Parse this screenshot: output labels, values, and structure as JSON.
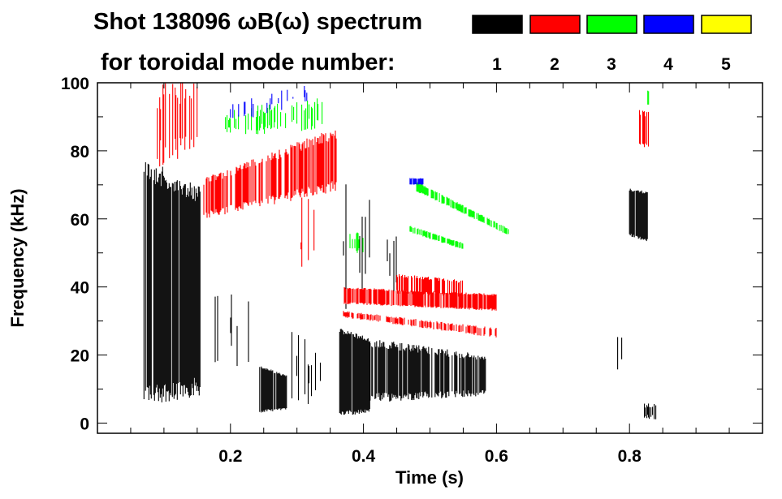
{
  "chart_data": {
    "type": "heatmap",
    "title": "Shot 138096 ωB(ω) spectrum",
    "subtitle": "for toroidal mode number:",
    "xlabel": "Time (s)",
    "ylabel": "Frequency (kHz)",
    "xlim": [
      0,
      1.0
    ],
    "ylim": [
      -3,
      100
    ],
    "xticks": [
      0.2,
      0.4,
      0.6,
      0.8
    ],
    "xtick_labels": [
      "0.2",
      "0.4",
      "0.6",
      "0.8"
    ],
    "yticks": [
      0,
      20,
      40,
      60,
      80,
      100
    ],
    "ytick_labels": [
      "0",
      "20",
      "40",
      "60",
      "80",
      "100"
    ],
    "grid": false,
    "legend_placement": "top-right",
    "legend": [
      {
        "mode": "1",
        "color": "#000000"
      },
      {
        "mode": "2",
        "color": "#ff0000"
      },
      {
        "mode": "3",
        "color": "#00ff00"
      },
      {
        "mode": "4",
        "color": "#0000ff"
      },
      {
        "mode": "5",
        "color": "#ffff00"
      }
    ],
    "features": [
      {
        "mode": 1,
        "t": [
          0.07,
          0.155
        ],
        "f_low": [
          5,
          8
        ],
        "f_high": [
          78,
          70
        ],
        "density": 0.85
      },
      {
        "mode": 1,
        "t": [
          0.16,
          0.23
        ],
        "f_low": [
          10,
          15
        ],
        "f_high": [
          45,
          40
        ],
        "density": 0.15
      },
      {
        "mode": 1,
        "t": [
          0.244,
          0.285
        ],
        "f_low": [
          3,
          4
        ],
        "f_high": [
          17,
          14
        ],
        "density": 0.9
      },
      {
        "mode": 1,
        "t": [
          0.29,
          0.36
        ],
        "f_low": [
          5,
          5
        ],
        "f_high": [
          28,
          30
        ],
        "density": 0.1
      },
      {
        "mode": 1,
        "t": [
          0.363,
          0.41
        ],
        "f_low": [
          2,
          3
        ],
        "f_high": [
          28,
          25
        ],
        "density": 0.9
      },
      {
        "mode": 1,
        "t": [
          0.37,
          0.45
        ],
        "f_low": [
          30,
          35
        ],
        "f_high": [
          75,
          60
        ],
        "density": 0.2
      },
      {
        "mode": 1,
        "t": [
          0.41,
          0.585
        ],
        "f_low": [
          6,
          8
        ],
        "f_high": [
          25,
          20
        ],
        "density": 0.75
      },
      {
        "mode": 1,
        "t": [
          0.8,
          0.83
        ],
        "f_low": [
          55,
          53
        ],
        "f_high": [
          69,
          68
        ],
        "density": 0.9
      },
      {
        "mode": 1,
        "t": [
          0.77,
          0.79
        ],
        "f_low": [
          15,
          15
        ],
        "f_high": [
          28,
          28
        ],
        "density": 0.2
      },
      {
        "mode": 1,
        "t": [
          0.82,
          0.84
        ],
        "f_low": [
          1,
          1
        ],
        "f_high": [
          6,
          6
        ],
        "density": 0.5
      },
      {
        "mode": 2,
        "t": [
          0.09,
          0.15
        ],
        "f_low": [
          75,
          78
        ],
        "f_high": [
          100,
          100
        ],
        "density": 0.45
      },
      {
        "mode": 2,
        "t": [
          0.16,
          0.36
        ],
        "f_low": [
          60,
          68
        ],
        "f_high": [
          72,
          87
        ],
        "density": 0.7
      },
      {
        "mode": 2,
        "t": [
          0.3,
          0.34
        ],
        "f_low": [
          30,
          35
        ],
        "f_high": [
          70,
          70
        ],
        "density": 0.08
      },
      {
        "mode": 2,
        "t": [
          0.37,
          0.6
        ],
        "f_low": [
          35,
          33
        ],
        "f_high": [
          40,
          38
        ],
        "density": 0.8
      },
      {
        "mode": 2,
        "t": [
          0.45,
          0.55
        ],
        "f_low": [
          38,
          37
        ],
        "f_high": [
          44,
          42
        ],
        "density": 0.7
      },
      {
        "mode": 2,
        "t": [
          0.37,
          0.6
        ],
        "f_low": [
          31,
          25
        ],
        "f_high": [
          33,
          28
        ],
        "density": 0.6
      },
      {
        "mode": 2,
        "t": [
          0.815,
          0.83
        ],
        "f_low": [
          80,
          80
        ],
        "f_high": [
          92,
          92
        ],
        "density": 0.7
      },
      {
        "mode": 3,
        "t": [
          0.19,
          0.34
        ],
        "f_low": [
          84,
          86
        ],
        "f_high": [
          92,
          96
        ],
        "density": 0.35
      },
      {
        "mode": 3,
        "t": [
          0.37,
          0.4
        ],
        "f_low": [
          48,
          50
        ],
        "f_high": [
          58,
          56
        ],
        "density": 0.35
      },
      {
        "mode": 3,
        "t": [
          0.47,
          0.55
        ],
        "f_low": [
          56,
          51
        ],
        "f_high": [
          58,
          53
        ],
        "density": 0.7
      },
      {
        "mode": 3,
        "t": [
          0.48,
          0.62
        ],
        "f_low": [
          68,
          55
        ],
        "f_high": [
          71,
          57
        ],
        "density": 0.7
      },
      {
        "mode": 3,
        "t": [
          0.825,
          0.83
        ],
        "f_low": [
          93,
          93
        ],
        "f_high": [
          98,
          98
        ],
        "density": 0.8
      },
      {
        "mode": 4,
        "t": [
          0.2,
          0.32
        ],
        "f_low": [
          88,
          94
        ],
        "f_high": [
          94,
          100
        ],
        "density": 0.2
      },
      {
        "mode": 4,
        "t": [
          0.47,
          0.49
        ],
        "f_low": [
          70,
          70
        ],
        "f_high": [
          72,
          72
        ],
        "density": 0.8
      }
    ]
  }
}
